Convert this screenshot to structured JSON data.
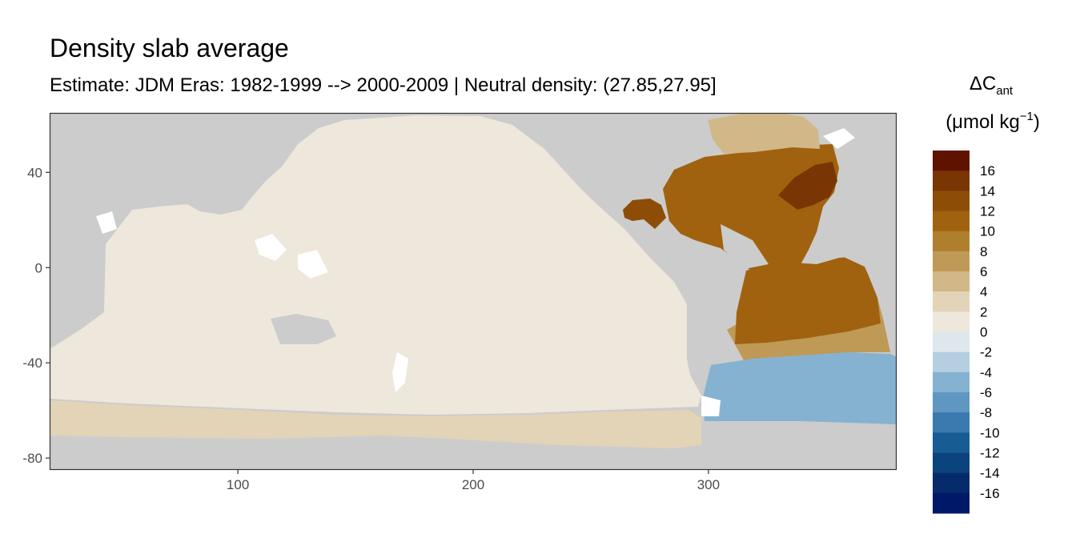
{
  "chart_data": {
    "type": "heatmap",
    "title": "Density slab average",
    "subtitle": "Estimate: JDM Eras: 1982-1999 --> 2000-2009 | Neutral density: (27.85,27.95]",
    "xlabel": "",
    "ylabel": "",
    "xlim": [
      20,
      380
    ],
    "ylim": [
      -85,
      65
    ],
    "x_ticks": [
      100,
      200,
      300
    ],
    "y_ticks": [
      40,
      0,
      -40,
      -80
    ],
    "grid": false,
    "land_color": "#cccccc",
    "panel_border_color": "#333333",
    "legend": {
      "position": "right",
      "title_main": "ΔC",
      "title_sub": "ant",
      "title_unit_start": "(μmol kg",
      "title_unit_sup": "−1",
      "title_unit_end": ")",
      "labels": [
        "16",
        "14",
        "12",
        "10",
        "8",
        "6",
        "4",
        "2",
        "0",
        "-2",
        "-4",
        "-6",
        "-8",
        "-10",
        "-12",
        "-14",
        "-16"
      ],
      "colors": [
        "#5f1200",
        "#7a3505",
        "#8d4d07",
        "#a0620f",
        "#b07f2e",
        "#bf9a57",
        "#d2b889",
        "#e3d4b8",
        "#ede7dc",
        "#dee7ec",
        "#b5cfe0",
        "#86b2d1",
        "#5f97c2",
        "#3b7aae",
        "#185c96",
        "#0b437e",
        "#062b6b",
        "#001868"
      ]
    },
    "regions": [
      {
        "name": "southern-shelf",
        "value": 3
      },
      {
        "name": "global-pacific-indian",
        "value": 1
      },
      {
        "name": "indian-tropics",
        "value": -0.5
      },
      {
        "name": "east-pacific-tropics",
        "value": -0.5
      },
      {
        "name": "south-atlantic-midlat",
        "value": 6
      },
      {
        "name": "tropical-atlantic",
        "value": 10
      },
      {
        "name": "north-atlantic",
        "value": 11
      },
      {
        "name": "north-atlantic-core",
        "value": 15
      },
      {
        "name": "subpolar-north-atlantic",
        "value": 5
      },
      {
        "name": "caribbean",
        "value": 13
      },
      {
        "name": "southern-atlantic",
        "value": -6
      }
    ]
  }
}
